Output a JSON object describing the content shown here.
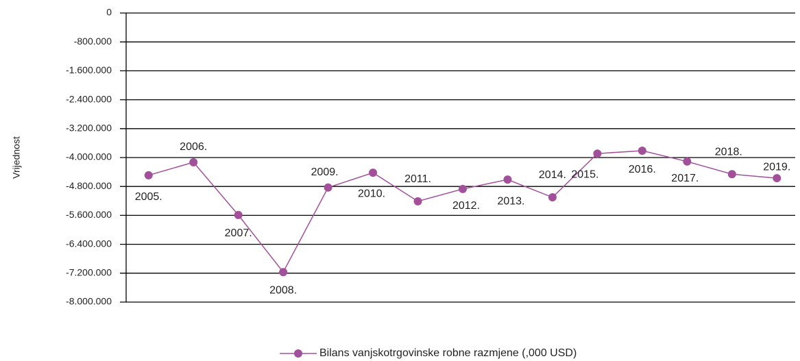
{
  "chart_data": {
    "type": "line",
    "y_label": "Vrijednost",
    "categories": [
      "2005.",
      "2006.",
      "2007.",
      "2008.",
      "2009.",
      "2010.",
      "2011.",
      "2012.",
      "2013.",
      "2014.",
      "2015.",
      "2016.",
      "2017.",
      "2018.",
      "2019."
    ],
    "series": [
      {
        "name": "Bilans vanjskotrgovinske robne razmjene (,000 USD)",
        "color": "#a3509b",
        "values": [
          -4490000,
          -4130000,
          -5590000,
          -7170000,
          -4830000,
          -4420000,
          -5210000,
          -4870000,
          -4610000,
          -5100000,
          -3890000,
          -3810000,
          -4110000,
          -4460000,
          -4570000
        ]
      }
    ],
    "ylim": [
      -8000000,
      0
    ],
    "yticks": [
      0,
      {
        "value": -800000,
        "label": "-800.000"
      },
      {
        "value": -1600000,
        "label": "-1.600.000"
      },
      {
        "value": -2400000,
        "label": "-2.400.000"
      },
      {
        "value": -3200000,
        "label": "-3.200.000"
      },
      {
        "value": -4000000,
        "label": "-4.000.000"
      },
      {
        "value": -4800000,
        "label": "-4.800.000"
      },
      {
        "value": -5600000,
        "label": "-5.600.000"
      },
      {
        "value": -6400000,
        "label": "-6.400.000"
      },
      {
        "value": -7200000,
        "label": "-7.200.000"
      },
      {
        "value": -8000000,
        "label": "-8.000.000"
      }
    ],
    "grid": true,
    "legend": "bottom"
  }
}
